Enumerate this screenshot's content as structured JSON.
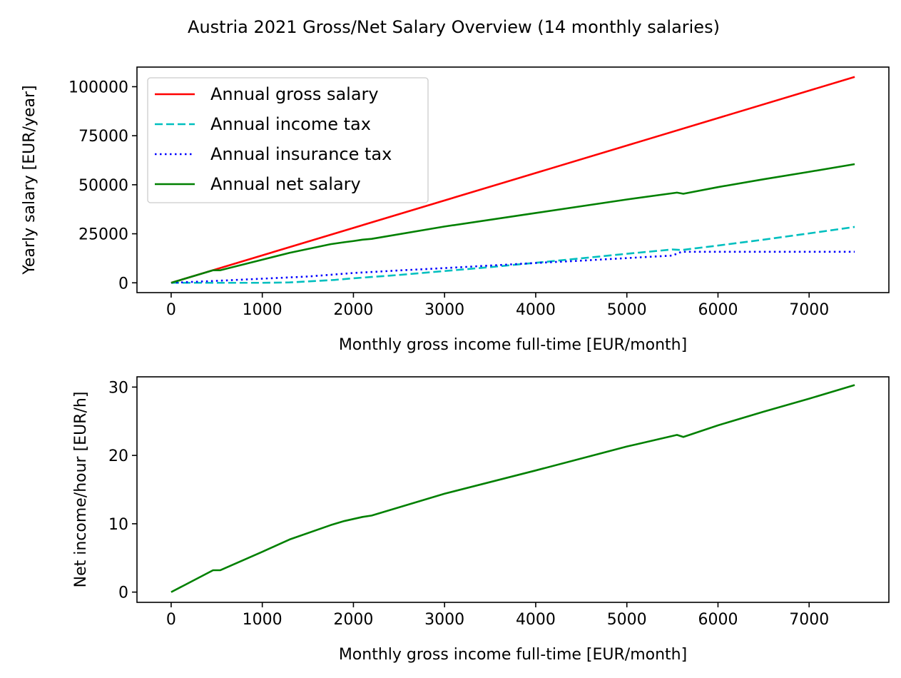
{
  "figure": {
    "title": "Austria 2021 Gross/Net Salary Overview (14 monthly salaries)"
  },
  "chart_data": [
    {
      "type": "line",
      "xlabel": "Monthly gross income full-time [EUR/month]",
      "ylabel": "Yearly salary [EUR/year]",
      "xlim": [
        -375,
        7875
      ],
      "ylim": [
        -5000,
        110000
      ],
      "xticks": [
        0,
        1000,
        2000,
        3000,
        4000,
        5000,
        6000,
        7000
      ],
      "yticks": [
        0,
        25000,
        50000,
        75000,
        100000
      ],
      "grid": false,
      "legend": "upper left",
      "series": [
        {
          "name": "Annual gross salary",
          "color": "#ff0000",
          "style": "solid",
          "x": [
            0,
            7500
          ],
          "y": [
            0,
            105000
          ]
        },
        {
          "name": "Annual income tax",
          "color": "#00bfbf",
          "style": "dashed",
          "x": [
            0,
            500,
            1000,
            1300,
            1500,
            1800,
            2000,
            2500,
            3000,
            3500,
            4000,
            4500,
            5000,
            5500,
            5600,
            6000,
            6500,
            7000,
            7500
          ],
          "y": [
            0,
            0,
            0,
            200,
            700,
            1500,
            2300,
            4000,
            6000,
            8000,
            10200,
            12500,
            14800,
            17000,
            16700,
            19000,
            22000,
            25200,
            28500
          ]
        },
        {
          "name": "Annual insurance tax",
          "color": "#0000ff",
          "style": "dotted",
          "x": [
            0,
            500,
            1000,
            1500,
            2000,
            2500,
            3000,
            3500,
            4000,
            4500,
            5000,
            5500,
            5600,
            6000,
            7000,
            7500
          ],
          "y": [
            0,
            1000,
            2100,
            3200,
            5000,
            6300,
            7500,
            8800,
            10100,
            11300,
            12600,
            13900,
            15800,
            15800,
            15800,
            15800
          ]
        },
        {
          "name": "Annual net salary",
          "color": "#008000",
          "style": "solid",
          "x": [
            0,
            460,
            540,
            1000,
            1300,
            1750,
            1900,
            2000,
            2100,
            2200,
            3000,
            4000,
            5000,
            5550,
            5620,
            6000,
            6500,
            7000,
            7500
          ],
          "y": [
            0,
            6400,
            6400,
            11800,
            15300,
            19700,
            20700,
            21300,
            22000,
            22400,
            28700,
            35600,
            42500,
            46000,
            45400,
            48800,
            52800,
            56600,
            60500
          ]
        }
      ]
    },
    {
      "type": "line",
      "xlabel": "Monthly gross income full-time [EUR/month]",
      "ylabel": "Net income/hour [EUR/h]",
      "xlim": [
        -375,
        7875
      ],
      "ylim": [
        -1.5,
        31.5
      ],
      "xticks": [
        0,
        1000,
        2000,
        3000,
        4000,
        5000,
        6000,
        7000
      ],
      "yticks": [
        0,
        10,
        20,
        30
      ],
      "grid": false,
      "series": [
        {
          "color": "#008000",
          "style": "solid",
          "x": [
            0,
            460,
            540,
            1000,
            1300,
            1750,
            1900,
            2000,
            2100,
            2200,
            3000,
            4000,
            5000,
            5550,
            5620,
            6000,
            6500,
            7000,
            7500
          ],
          "y": [
            0,
            3.2,
            3.2,
            5.9,
            7.7,
            9.8,
            10.4,
            10.7,
            11.0,
            11.2,
            14.4,
            17.8,
            21.3,
            23.0,
            22.7,
            24.4,
            26.4,
            28.3,
            30.3
          ]
        }
      ]
    }
  ]
}
